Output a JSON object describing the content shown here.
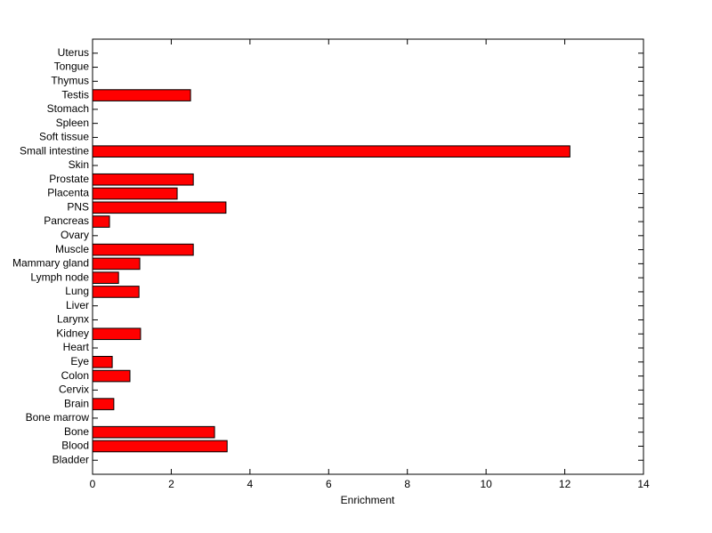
{
  "chart_data": {
    "type": "barh",
    "categories": [
      "Bladder",
      "Blood",
      "Bone",
      "Bone marrow",
      "Brain",
      "Cervix",
      "Colon",
      "Eye",
      "Heart",
      "Kidney",
      "Larynx",
      "Liver",
      "Lung",
      "Lymph node",
      "Mammary gland",
      "Muscle",
      "Ovary",
      "Pancreas",
      "PNS",
      "Placenta",
      "Prostate",
      "Skin",
      "Small intestine",
      "Soft tissue",
      "Spleen",
      "Stomach",
      "Testis",
      "Thymus",
      "Tongue",
      "Uterus"
    ],
    "values": [
      0,
      3.42,
      3.1,
      0,
      0.54,
      0,
      0.95,
      0.5,
      0,
      1.22,
      0,
      0,
      1.18,
      0.66,
      1.2,
      2.56,
      0,
      0.43,
      3.39,
      2.15,
      2.56,
      0,
      12.13,
      0,
      0,
      0,
      2.49,
      0,
      0,
      0
    ],
    "color": "#ff0000",
    "xlim": [
      0,
      14
    ],
    "xticks": [
      0,
      2,
      4,
      6,
      8,
      10,
      12,
      14
    ],
    "xlabel": "Enrichment"
  }
}
